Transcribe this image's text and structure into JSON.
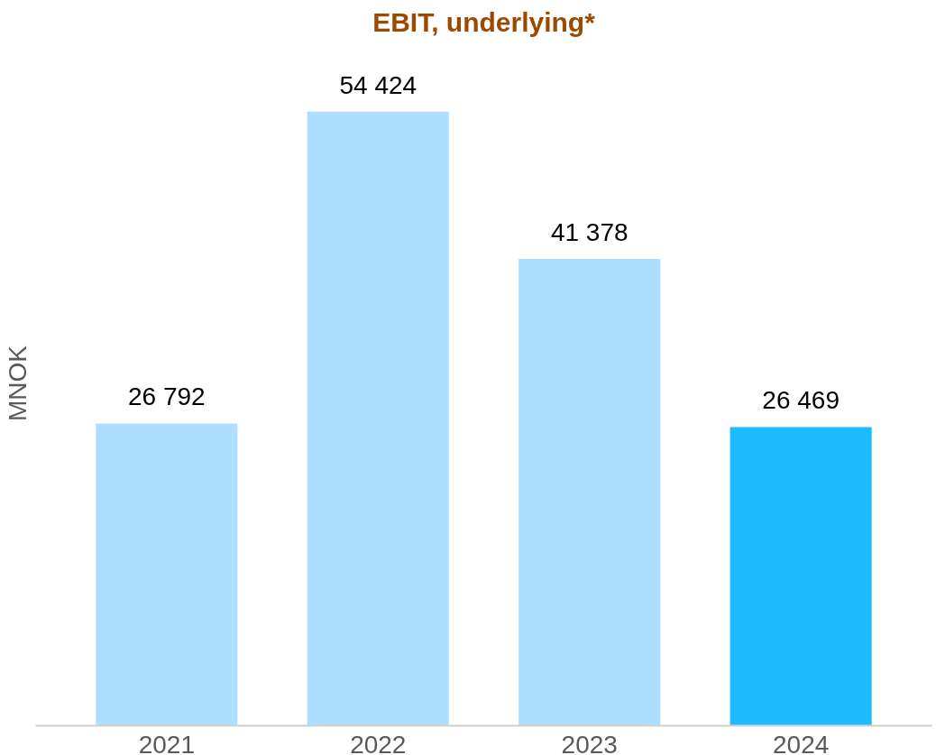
{
  "chart_data": {
    "type": "bar",
    "title": "EBIT, underlying*",
    "ylabel": "MNOK",
    "categories": [
      "2021",
      "2022",
      "2023",
      "2024"
    ],
    "values": [
      26792,
      54424,
      41378,
      26469
    ],
    "colors": [
      "#addeff",
      "#addeff",
      "#addeff",
      "#1fbbff"
    ],
    "value_labels": [
      "26 792",
      "54 424",
      "41 378",
      "26 469"
    ],
    "tick_labels": "x",
    "grid": false
  }
}
